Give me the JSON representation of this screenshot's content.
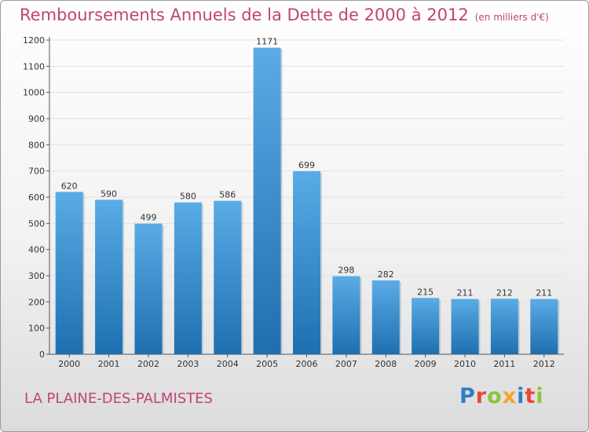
{
  "header": {
    "title": "Remboursements Annuels de la Dette de 2000 à 2012",
    "unit": "(en milliers d'€)"
  },
  "footer": {
    "city": "LA PLAINE-DES-PALMISTES",
    "logo": "Proxiti"
  },
  "colors": {
    "title": "#c0437a",
    "bar_light": "#5aace6",
    "bar_dark": "#1d6fb0",
    "logo_letters": [
      "#2f7dc8",
      "#e8463d",
      "#8ac43f",
      "#f5a623",
      "#2f7dc8",
      "#e8463d",
      "#8ac43f"
    ]
  },
  "chart_data": {
    "type": "bar",
    "title": "Remboursements Annuels de la Dette de 2000 à 2012",
    "xlabel": "",
    "ylabel": "",
    "categories": [
      "2000",
      "2001",
      "2002",
      "2003",
      "2004",
      "2005",
      "2006",
      "2007",
      "2008",
      "2009",
      "2010",
      "2011",
      "2012"
    ],
    "values": [
      620,
      590,
      499,
      580,
      586,
      1171,
      699,
      298,
      282,
      215,
      211,
      212,
      211
    ],
    "ylim": [
      0,
      1200
    ],
    "yticks": [
      0,
      100,
      200,
      300,
      400,
      500,
      600,
      700,
      800,
      900,
      1000,
      1100,
      1200
    ],
    "grid": true,
    "legend": "none"
  }
}
